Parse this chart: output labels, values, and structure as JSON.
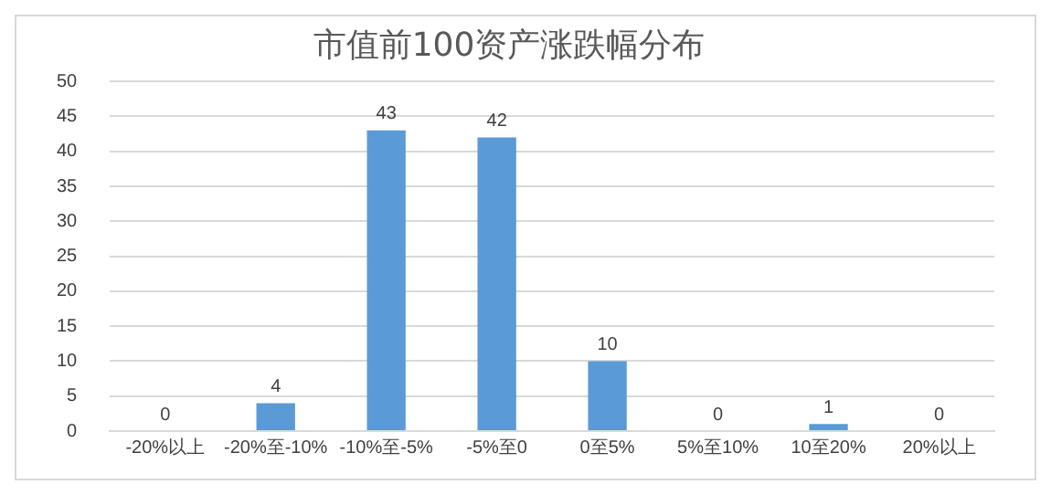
{
  "chart_data": {
    "type": "bar",
    "title": "市值前100资产涨跌幅分布",
    "categories": [
      "-20%以上",
      "-20%至-10%",
      "-10%至-5%",
      "-5%至0",
      "0至5%",
      "5%至10%",
      "10至20%",
      "20%以上"
    ],
    "values": [
      0,
      4,
      43,
      42,
      10,
      0,
      1,
      0
    ],
    "color": "#5b9bd5",
    "ylim": [
      0,
      50
    ],
    "yticks": [
      0,
      5,
      10,
      15,
      20,
      25,
      30,
      35,
      40,
      45,
      50
    ],
    "grid": "y",
    "data_labels": true,
    "legend": false
  }
}
